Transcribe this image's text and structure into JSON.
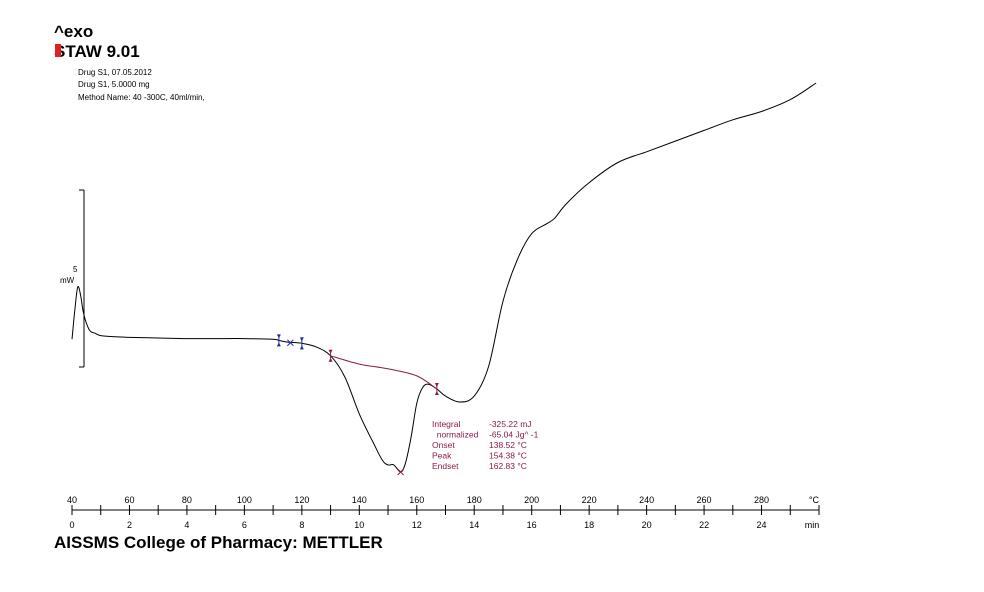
{
  "header": {
    "exo_label": "^exo",
    "software_label": "STAW 9.01",
    "meta_lines": [
      "Drug S1, 07.05.2012",
      "Drug S1, 5.0000 mg",
      "Method Name: 40 -300C, 40ml/min,"
    ]
  },
  "scale_bar": {
    "value_label": "5",
    "unit_label": "mW"
  },
  "annotation": {
    "rows": [
      {
        "label": "Integral",
        "value": "-325.22 mJ"
      },
      {
        "label": "  normalized",
        "value": "-65.04 Jg^ -1"
      },
      {
        "label": "Onset",
        "value": "138.52 °C"
      },
      {
        "label": "Peak",
        "value": "154.38 °C"
      },
      {
        "label": "Endset",
        "value": "162.83 °C"
      }
    ]
  },
  "footer": {
    "text": "AISSMS College of Pharmacy: METTLER"
  },
  "colors": {
    "curve": "#000000",
    "baseline": "#8b1a4a",
    "marker_blue": "#1f2fa0",
    "marker_red": "#8b1a4a",
    "annotation": "#8b1a4a"
  },
  "chart_data": {
    "type": "line",
    "title": "",
    "x_temperature": {
      "label": "°C",
      "range": [
        40,
        300
      ],
      "ticks": [
        40,
        60,
        80,
        100,
        120,
        140,
        160,
        180,
        200,
        220,
        240,
        260,
        280
      ]
    },
    "x_time": {
      "label": "min",
      "range": [
        0,
        26
      ],
      "ticks": [
        0,
        2,
        4,
        6,
        8,
        10,
        12,
        14,
        16,
        18,
        20,
        22,
        24
      ]
    },
    "y_range_mW": [
      -12,
      11
    ],
    "series": [
      {
        "x": [
          40,
          41,
          42,
          43,
          44,
          46,
          48,
          50,
          55,
          60,
          70,
          80,
          90,
          100,
          110,
          112,
          115,
          120,
          125,
          130,
          135,
          140,
          145,
          148,
          150,
          152,
          154.38,
          156,
          158,
          160,
          162,
          164,
          167,
          170,
          175,
          180,
          185,
          190,
          195,
          200,
          205,
          208,
          212,
          220,
          230,
          240,
          250,
          260,
          270,
          280,
          290,
          299
        ],
        "y": [
          -0.2,
          2.3,
          4.2,
          3.5,
          2.0,
          0.6,
          0.3,
          0.1,
          0.0,
          -0.05,
          -0.1,
          -0.15,
          -0.15,
          -0.15,
          -0.2,
          -0.3,
          -0.45,
          -0.55,
          -0.85,
          -1.6,
          -3.4,
          -6.5,
          -9.0,
          -10.4,
          -10.8,
          -10.8,
          -11.4,
          -10.7,
          -8.5,
          -5.6,
          -4.3,
          -4.0,
          -4.4,
          -5.0,
          -5.5,
          -5.0,
          -2.5,
          3.0,
          6.5,
          8.7,
          9.5,
          10.0,
          11.2,
          13.0,
          14.7,
          15.6,
          16.5,
          17.4,
          18.3,
          19.0,
          20.0,
          21.4
        ]
      }
    ],
    "integration_baseline": {
      "x": [
        130,
        140,
        150,
        160,
        167
      ],
      "y": [
        -1.6,
        -2.3,
        -2.7,
        -3.3,
        -4.4
      ]
    },
    "markers": [
      {
        "x": 112,
        "y": -0.3,
        "kind": "limit",
        "color": "blue"
      },
      {
        "x": 116,
        "y": -0.5,
        "kind": "peak",
        "color": "blue"
      },
      {
        "x": 120,
        "y": -0.55,
        "kind": "limit",
        "color": "blue"
      },
      {
        "x": 130,
        "y": -1.6,
        "kind": "limit",
        "color": "red"
      },
      {
        "x": 154.38,
        "y": -11.4,
        "kind": "peak",
        "color": "red"
      },
      {
        "x": 167,
        "y": -4.4,
        "kind": "limit",
        "color": "red"
      }
    ]
  }
}
